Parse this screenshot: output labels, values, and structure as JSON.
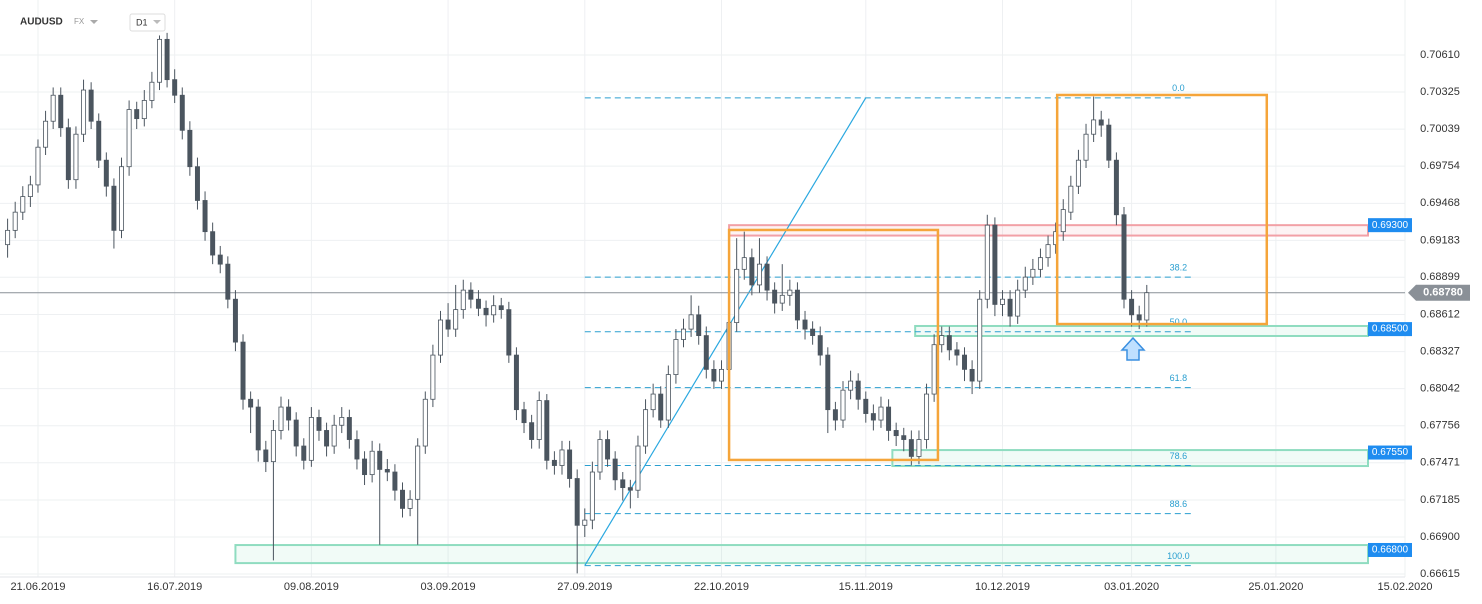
{
  "header": {
    "symbol": "AUDUSD",
    "market": "FX",
    "timeframe": "D1"
  },
  "chart_data": {
    "type": "candlestick",
    "candles": [
      [
        0.6915,
        0.6935,
        0.6905,
        0.6926
      ],
      [
        0.6926,
        0.6948,
        0.692,
        0.694
      ],
      [
        0.694,
        0.696,
        0.6934,
        0.6952
      ],
      [
        0.6952,
        0.6968,
        0.6944,
        0.6961
      ],
      [
        0.6961,
        0.6996,
        0.6955,
        0.699
      ],
      [
        0.699,
        0.7018,
        0.6984,
        0.701
      ],
      [
        0.701,
        0.7036,
        0.7004,
        0.703
      ],
      [
        0.703,
        0.7036,
        0.6998,
        0.7005
      ],
      [
        0.7005,
        0.7012,
        0.6958,
        0.6965
      ],
      [
        0.6965,
        0.7006,
        0.6958,
        0.7
      ],
      [
        0.7,
        0.7042,
        0.6994,
        0.7034
      ],
      [
        0.7034,
        0.704,
        0.7004,
        0.701
      ],
      [
        0.701,
        0.7016,
        0.6974,
        0.698
      ],
      [
        0.698,
        0.6986,
        0.6952,
        0.696
      ],
      [
        0.696,
        0.6966,
        0.6912,
        0.6926
      ],
      [
        0.6926,
        0.6982,
        0.692,
        0.6975
      ],
      [
        0.6975,
        0.7026,
        0.6968,
        0.7019
      ],
      [
        0.7019,
        0.7025,
        0.7004,
        0.7012
      ],
      [
        0.7012,
        0.7034,
        0.7006,
        0.7026
      ],
      [
        0.7026,
        0.7048,
        0.702,
        0.704
      ],
      [
        0.704,
        0.7076,
        0.7034,
        0.7073
      ],
      [
        0.7073,
        0.7078,
        0.7036,
        0.7042
      ],
      [
        0.7042,
        0.705,
        0.7024,
        0.703
      ],
      [
        0.703,
        0.7036,
        0.6996,
        0.7003
      ],
      [
        0.7003,
        0.701,
        0.6968,
        0.6975
      ],
      [
        0.6975,
        0.6982,
        0.6942,
        0.6949
      ],
      [
        0.6949,
        0.6956,
        0.6918,
        0.6925
      ],
      [
        0.6925,
        0.6932,
        0.69,
        0.6907
      ],
      [
        0.6907,
        0.6914,
        0.6893,
        0.69
      ],
      [
        0.69,
        0.6906,
        0.6866,
        0.6873
      ],
      [
        0.6873,
        0.688,
        0.6833,
        0.684
      ],
      [
        0.684,
        0.6846,
        0.6788,
        0.6796
      ],
      [
        0.6796,
        0.6802,
        0.677,
        0.679
      ],
      [
        0.679,
        0.6796,
        0.6748,
        0.6757
      ],
      [
        0.6757,
        0.6764,
        0.674,
        0.6748
      ],
      [
        0.6748,
        0.678,
        0.6672,
        0.6772
      ],
      [
        0.6772,
        0.6798,
        0.6765,
        0.679
      ],
      [
        0.679,
        0.6796,
        0.6772,
        0.678
      ],
      [
        0.678,
        0.6786,
        0.6752,
        0.676
      ],
      [
        0.676,
        0.6766,
        0.6742,
        0.6749
      ],
      [
        0.6749,
        0.679,
        0.6744,
        0.6782
      ],
      [
        0.6782,
        0.6788,
        0.6764,
        0.6772
      ],
      [
        0.6772,
        0.6778,
        0.6752,
        0.676
      ],
      [
        0.676,
        0.6784,
        0.6754,
        0.6776
      ],
      [
        0.6776,
        0.679,
        0.677,
        0.6782
      ],
      [
        0.6782,
        0.6788,
        0.6758,
        0.6765
      ],
      [
        0.6765,
        0.6772,
        0.6742,
        0.675
      ],
      [
        0.675,
        0.6756,
        0.673,
        0.6738
      ],
      [
        0.6738,
        0.6764,
        0.6732,
        0.6756
      ],
      [
        0.6756,
        0.6762,
        0.6684,
        0.6742
      ],
      [
        0.6742,
        0.675,
        0.6733,
        0.674
      ],
      [
        0.674,
        0.6746,
        0.6718,
        0.6726
      ],
      [
        0.6726,
        0.6732,
        0.6705,
        0.6712
      ],
      [
        0.6712,
        0.6726,
        0.6706,
        0.6719
      ],
      [
        0.6719,
        0.6766,
        0.6684,
        0.676
      ],
      [
        0.676,
        0.6802,
        0.6754,
        0.6796
      ],
      [
        0.6796,
        0.6838,
        0.679,
        0.683
      ],
      [
        0.683,
        0.6864,
        0.6824,
        0.6857
      ],
      [
        0.6857,
        0.687,
        0.6844,
        0.685
      ],
      [
        0.685,
        0.6884,
        0.6844,
        0.6865
      ],
      [
        0.6865,
        0.6888,
        0.6858,
        0.688
      ],
      [
        0.688,
        0.6886,
        0.6866,
        0.6873
      ],
      [
        0.6873,
        0.688,
        0.686,
        0.6866
      ],
      [
        0.6866,
        0.6872,
        0.6852,
        0.6861
      ],
      [
        0.6861,
        0.6876,
        0.6855,
        0.6868
      ],
      [
        0.6868,
        0.6874,
        0.6858,
        0.6865
      ],
      [
        0.6865,
        0.6871,
        0.6824,
        0.683
      ],
      [
        0.683,
        0.6836,
        0.678,
        0.6788
      ],
      [
        0.6788,
        0.6794,
        0.677,
        0.6778
      ],
      [
        0.6778,
        0.6784,
        0.6758,
        0.6765
      ],
      [
        0.6765,
        0.6802,
        0.6758,
        0.6795
      ],
      [
        0.6795,
        0.68,
        0.6742,
        0.6749
      ],
      [
        0.6749,
        0.6756,
        0.6738,
        0.6745
      ],
      [
        0.6745,
        0.6764,
        0.6738,
        0.6757
      ],
      [
        0.6757,
        0.6764,
        0.6728,
        0.6735
      ],
      [
        0.6735,
        0.6742,
        0.6662,
        0.6699
      ],
      [
        0.6699,
        0.6712,
        0.669,
        0.6703
      ],
      [
        0.6703,
        0.6748,
        0.6696,
        0.674
      ],
      [
        0.674,
        0.6772,
        0.6734,
        0.6765
      ],
      [
        0.6765,
        0.6772,
        0.6744,
        0.675
      ],
      [
        0.675,
        0.6756,
        0.6726,
        0.6734
      ],
      [
        0.6734,
        0.674,
        0.6718,
        0.6728
      ],
      [
        0.6728,
        0.6734,
        0.6712,
        0.6726
      ],
      [
        0.6726,
        0.6768,
        0.672,
        0.676
      ],
      [
        0.676,
        0.6796,
        0.6754,
        0.6788
      ],
      [
        0.6788,
        0.6808,
        0.6782,
        0.68
      ],
      [
        0.68,
        0.6806,
        0.6774,
        0.678
      ],
      [
        0.678,
        0.6822,
        0.6774,
        0.6815
      ],
      [
        0.6815,
        0.685,
        0.6808,
        0.6842
      ],
      [
        0.6842,
        0.6858,
        0.6836,
        0.685
      ],
      [
        0.685,
        0.6876,
        0.6844,
        0.6861
      ],
      [
        0.6861,
        0.6868,
        0.6838,
        0.6845
      ],
      [
        0.6845,
        0.6852,
        0.6812,
        0.6819
      ],
      [
        0.6819,
        0.6826,
        0.6804,
        0.681
      ],
      [
        0.681,
        0.6826,
        0.6804,
        0.6819
      ],
      [
        0.6819,
        0.6862,
        0.6812,
        0.6855
      ],
      [
        0.6855,
        0.692,
        0.6848,
        0.6896
      ],
      [
        0.6896,
        0.6925,
        0.6888,
        0.6905
      ],
      [
        0.6905,
        0.6912,
        0.6876,
        0.6884
      ],
      [
        0.6884,
        0.692,
        0.6878,
        0.69
      ],
      [
        0.69,
        0.6906,
        0.6872,
        0.688
      ],
      [
        0.688,
        0.6886,
        0.6862,
        0.687
      ],
      [
        0.687,
        0.69,
        0.6864,
        0.6876
      ],
      [
        0.6876,
        0.6888,
        0.6868,
        0.688
      ],
      [
        0.688,
        0.6886,
        0.685,
        0.6857
      ],
      [
        0.6857,
        0.6864,
        0.6842,
        0.685
      ],
      [
        0.685,
        0.6856,
        0.6838,
        0.6845
      ],
      [
        0.6845,
        0.6852,
        0.6822,
        0.683
      ],
      [
        0.683,
        0.6836,
        0.677,
        0.6788
      ],
      [
        0.6788,
        0.6794,
        0.6772,
        0.678
      ],
      [
        0.678,
        0.681,
        0.6774,
        0.6803
      ],
      [
        0.6803,
        0.6818,
        0.6796,
        0.681
      ],
      [
        0.681,
        0.6816,
        0.6788,
        0.6796
      ],
      [
        0.6796,
        0.6802,
        0.6778,
        0.6785
      ],
      [
        0.6785,
        0.6792,
        0.6772,
        0.678
      ],
      [
        0.678,
        0.6798,
        0.6774,
        0.679
      ],
      [
        0.679,
        0.6796,
        0.6764,
        0.6772
      ],
      [
        0.6772,
        0.6778,
        0.676,
        0.6768
      ],
      [
        0.6768,
        0.6774,
        0.6756,
        0.6765
      ],
      [
        0.6765,
        0.6772,
        0.6745,
        0.6752
      ],
      [
        0.6752,
        0.6772,
        0.6746,
        0.6765
      ],
      [
        0.6765,
        0.6808,
        0.6758,
        0.68
      ],
      [
        0.68,
        0.6846,
        0.6794,
        0.6838
      ],
      [
        0.6838,
        0.6852,
        0.6832,
        0.6845
      ],
      [
        0.6845,
        0.6852,
        0.6826,
        0.6834
      ],
      [
        0.6834,
        0.684,
        0.6822,
        0.683
      ],
      [
        0.683,
        0.6836,
        0.681,
        0.6819
      ],
      [
        0.6819,
        0.6826,
        0.68,
        0.681
      ],
      [
        0.681,
        0.688,
        0.6804,
        0.6873
      ],
      [
        0.6873,
        0.6938,
        0.6866,
        0.693
      ],
      [
        0.693,
        0.6936,
        0.686,
        0.6869
      ],
      [
        0.6869,
        0.688,
        0.686,
        0.6873
      ],
      [
        0.6873,
        0.688,
        0.6852,
        0.686
      ],
      [
        0.686,
        0.6888,
        0.6854,
        0.688
      ],
      [
        0.688,
        0.6898,
        0.6874,
        0.689
      ],
      [
        0.689,
        0.6904,
        0.6884,
        0.6896
      ],
      [
        0.6896,
        0.6912,
        0.689,
        0.6905
      ],
      [
        0.6905,
        0.6922,
        0.6898,
        0.6915
      ],
      [
        0.6915,
        0.6932,
        0.6908,
        0.6925
      ],
      [
        0.6925,
        0.695,
        0.6918,
        0.6942
      ],
      [
        0.694,
        0.6968,
        0.6934,
        0.696
      ],
      [
        0.696,
        0.6988,
        0.6954,
        0.698
      ],
      [
        0.698,
        0.7008,
        0.6974,
        0.7
      ],
      [
        0.7,
        0.7029,
        0.6994,
        0.7011
      ],
      [
        0.7011,
        0.7018,
        0.6998,
        0.7007
      ],
      [
        0.7007,
        0.7012,
        0.6974,
        0.698
      ],
      [
        0.698,
        0.6986,
        0.693,
        0.6938
      ],
      [
        0.6938,
        0.6944,
        0.6866,
        0.6873
      ],
      [
        0.6873,
        0.688,
        0.6852,
        0.6861
      ],
      [
        0.6861,
        0.6868,
        0.685,
        0.6857
      ],
      [
        0.6857,
        0.6884,
        0.6852,
        0.6878
      ]
    ],
    "up_color": "#ffffff",
    "down_color": "#4b555f",
    "wick_color": "#4b555f",
    "xlim": [
      -1,
      184
    ],
    "xticks": [
      {
        "value": 4,
        "label": "21.06.2019"
      },
      {
        "value": 22,
        "label": "16.07.2019"
      },
      {
        "value": 40,
        "label": "09.08.2019"
      },
      {
        "value": 58,
        "label": "03.09.2019"
      },
      {
        "value": 76,
        "label": "27.09.2019"
      },
      {
        "value": 94,
        "label": "22.10.2019"
      },
      {
        "value": 113,
        "label": "15.11.2019"
      },
      {
        "value": 131,
        "label": "10.12.2019"
      },
      {
        "value": 148,
        "label": "03.01.2020"
      },
      {
        "value": 167,
        "label": "25.01.2020"
      },
      {
        "value": 184,
        "label": "15.02.2020"
      }
    ],
    "ylim": [
      0.66492,
      0.71033
    ],
    "yticks": [
      {
        "value": 0.7061,
        "label": "0.70610"
      },
      0.70325,
      0.70039,
      0.69754,
      0.69468,
      0.69183,
      0.68899,
      0.68612,
      0.68327,
      0.68042,
      0.67756,
      0.67471,
      0.67185,
      {
        "value": 0.669,
        "label": "0.66900"
      },
      0.66615
    ],
    "grid": true,
    "current_price": {
      "value": 0.6878,
      "label": "0.68780"
    },
    "zones": [
      {
        "range": [
          0.6922,
          0.693
        ],
        "start": 95,
        "level": {
          "value": 0.693,
          "label": "0.69300"
        },
        "color": "#f2a0a6"
      },
      {
        "range": [
          0.68447,
          0.68524
        ],
        "start": 119.5,
        "level": {
          "value": 0.685,
          "label": "0.68500"
        },
        "color": "#8fdcc0"
      },
      {
        "range": [
          0.67446,
          0.67569
        ],
        "start": 116.5,
        "level": {
          "value": 0.6755,
          "label": "0.67550"
        },
        "color": "#8fdcc0"
      },
      {
        "range": [
          0.66699,
          0.66838
        ],
        "start": 30,
        "level": {
          "value": 0.668,
          "label": "0.66800"
        },
        "color": "#8fdcc0"
      }
    ],
    "fibonacci": {
      "start": 76,
      "end": 156,
      "color": "#2a9fd0",
      "levels": [
        {
          "label": "0.0",
          "price": 0.7028
        },
        {
          "label": "38.2",
          "price": 0.689
        },
        {
          "label": "50.0",
          "price": 0.6848
        },
        {
          "label": "61.8",
          "price": 0.6805
        },
        {
          "label": "78.6",
          "price": 0.6745
        },
        {
          "label": "88.6",
          "price": 0.6708
        },
        {
          "label": "100.0",
          "price": 0.6668
        }
      ]
    },
    "trend_line": {
      "x": [
        76,
        113
      ],
      "y": [
        0.6668,
        0.7028
      ],
      "color": "#2aa8e0"
    },
    "boxes": [
      {
        "x": [
          95,
          122.5
        ],
        "y": [
          0.67493,
          0.69263
        ],
        "color": "#f5a53a"
      },
      {
        "x": [
          138.2,
          165.8
        ],
        "y": [
          0.68539,
          0.70302
        ],
        "color": "#f5a53a"
      }
    ],
    "level_label_color": "#1e8cf0"
  }
}
